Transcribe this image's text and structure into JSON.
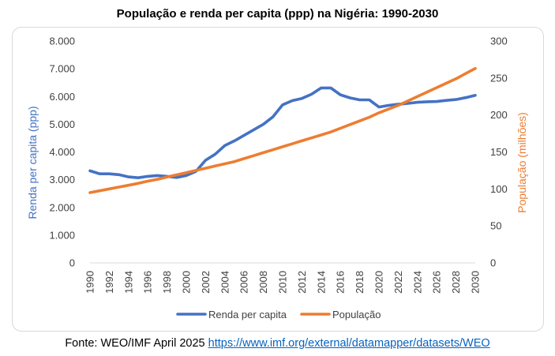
{
  "chart_data": {
    "type": "line",
    "title": "População e renda per capita (ppp) na Nigéria: 1990-2030",
    "x": [
      1990,
      1991,
      1992,
      1993,
      1994,
      1995,
      1996,
      1997,
      1998,
      1999,
      2000,
      2001,
      2002,
      2003,
      2004,
      2005,
      2006,
      2007,
      2008,
      2009,
      2010,
      2011,
      2012,
      2013,
      2014,
      2015,
      2016,
      2017,
      2018,
      2019,
      2020,
      2021,
      2022,
      2023,
      2024,
      2025,
      2026,
      2027,
      2028,
      2029,
      2030
    ],
    "x_tick_labels": [
      "1990",
      "1992",
      "1994",
      "1996",
      "1998",
      "2000",
      "2002",
      "2004",
      "2006",
      "2008",
      "2010",
      "2012",
      "2014",
      "2016",
      "2018",
      "2020",
      "2022",
      "2024",
      "2026",
      "2028",
      "2030"
    ],
    "y_left": {
      "label": "Renda per capita (ppp)",
      "range": [
        0,
        8000
      ],
      "tick_labels": [
        "0",
        "1.000",
        "2.000",
        "3.000",
        "4.000",
        "5.000",
        "6.000",
        "7.000",
        "8.000"
      ],
      "color": "#4472c4"
    },
    "y_right": {
      "label": "População (milhões)",
      "range": [
        0,
        300
      ],
      "tick_labels": [
        "0",
        "50",
        "100",
        "150",
        "200",
        "250",
        "300"
      ],
      "color": "#ed7d31"
    },
    "grid": false,
    "legend_position": "bottom",
    "series": [
      {
        "name": "Renda per capita",
        "axis": "left",
        "color": "#4472c4",
        "values": [
          3320,
          3210,
          3210,
          3180,
          3100,
          3070,
          3120,
          3150,
          3120,
          3080,
          3150,
          3300,
          3700,
          3920,
          4230,
          4400,
          4600,
          4800,
          5000,
          5270,
          5700,
          5850,
          5930,
          6080,
          6310,
          6310,
          6060,
          5950,
          5880,
          5880,
          5620,
          5680,
          5720,
          5750,
          5790,
          5810,
          5820,
          5860,
          5890,
          5960,
          6040
        ]
      },
      {
        "name": "População",
        "axis": "right",
        "color": "#ed7d31",
        "values": [
          95,
          97.5,
          100,
          102.5,
          105,
          107.5,
          110.5,
          113,
          116,
          119,
          122,
          125,
          128,
          131,
          134,
          137,
          141,
          145,
          149,
          153,
          157,
          161,
          165,
          169,
          173,
          177,
          182,
          187,
          192,
          197,
          203,
          208,
          213,
          219,
          225,
          231,
          237,
          243,
          249,
          256,
          263
        ]
      }
    ]
  },
  "source": {
    "prefix": "Fonte: WEO/IMF April 2025 ",
    "link_text": "https://www.imf.org/external/datamapper/datasets/WEO"
  }
}
